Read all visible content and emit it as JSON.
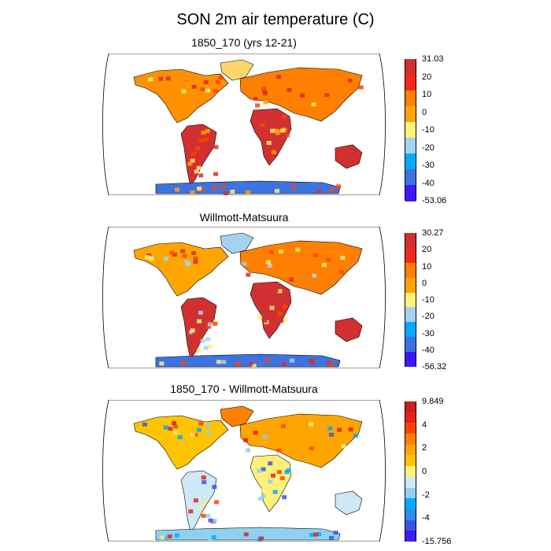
{
  "figure": {
    "title": "SON 2m air temperature (C)"
  },
  "panels": [
    {
      "title": "1850_170 (yrs 12-21)",
      "colorbar": {
        "labels": [
          "31.03",
          "20",
          "10",
          "0",
          "-10",
          "-20",
          "-30",
          "-40",
          "-53.06"
        ],
        "colors": [
          "#d23030",
          "#f3291c",
          "#ff7f00",
          "#ffa500",
          "#fff07a",
          "#a3d3f0",
          "#00aaff",
          "#3d73e0",
          "#3f17ff"
        ]
      }
    },
    {
      "title": "Willmott-Matsuura",
      "colorbar": {
        "labels": [
          "30.27",
          "20",
          "10",
          "0",
          "-10",
          "-20",
          "-30",
          "-40",
          "-56.32"
        ],
        "colors": [
          "#d23030",
          "#f3291c",
          "#ff7f00",
          "#ffa500",
          "#fff07a",
          "#a3d3f0",
          "#00aaff",
          "#3d73e0",
          "#3f17ff"
        ]
      }
    },
    {
      "title": "1850_170 - Willmott-Matsuura",
      "colorbar": {
        "labels": [
          "9.849",
          "4",
          "2",
          "0",
          "-2",
          "-4",
          "-15.756"
        ],
        "colors": [
          "#c81e1e",
          "#e8201c",
          "#ff4400",
          "#ff7f00",
          "#ffa500",
          "#ffc400",
          "#fff07a",
          "#cfe8f6",
          "#8fd0f0",
          "#00aaff",
          "#2a8de8",
          "#3d55e0",
          "#3b20f0"
        ]
      }
    }
  ]
}
